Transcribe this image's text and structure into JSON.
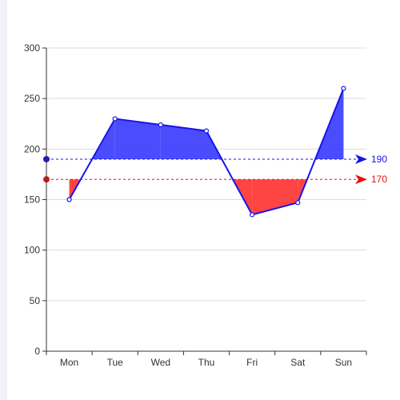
{
  "theme": {
    "line_color": "#1515e8",
    "upper_band_color": "#3333ff",
    "lower_band_color": "#ff2a2a",
    "grid_color": "#dcdcdc",
    "axis_color": "#333333",
    "point_fill": "#ffffff"
  },
  "chart_data": {
    "type": "line",
    "categories": [
      "Mon",
      "Tue",
      "Wed",
      "Thu",
      "Fri",
      "Sat",
      "Sun"
    ],
    "series": [
      {
        "values": [
          150,
          230,
          224,
          218,
          135,
          147,
          260
        ]
      }
    ],
    "ylim": [
      0,
      300
    ],
    "yticks": [
      0,
      50,
      100,
      150,
      200,
      250,
      300
    ],
    "grid": true,
    "mark_lines": [
      {
        "value": 190,
        "label": "190",
        "color": "#1515e8",
        "fills_above": true
      },
      {
        "value": 170,
        "label": "170",
        "color": "#e81010",
        "fills_above": false
      }
    ]
  }
}
